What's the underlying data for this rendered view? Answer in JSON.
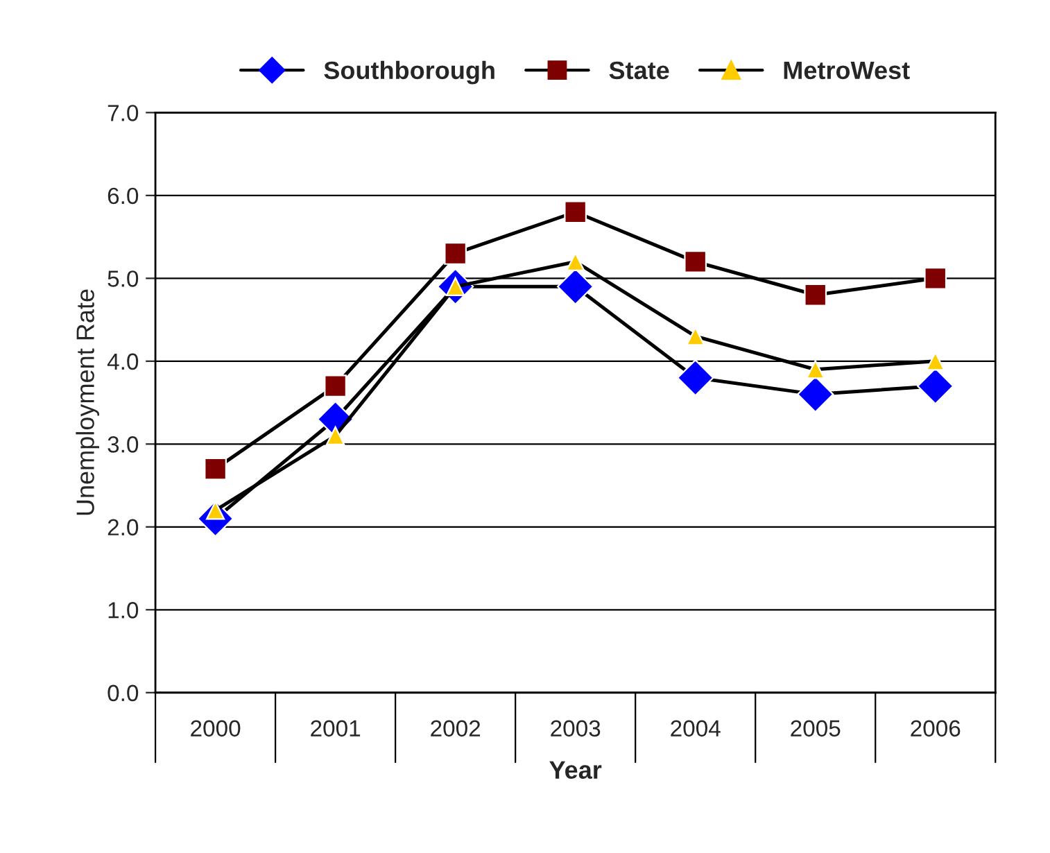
{
  "chart_data": {
    "type": "line",
    "xlabel": "Year",
    "ylabel": "Unemployment Rate",
    "categories": [
      "2000",
      "2001",
      "2002",
      "2003",
      "2004",
      "2005",
      "2006"
    ],
    "series": [
      {
        "name": "Southborough",
        "color": "#0000ff",
        "marker": "diamond",
        "values": [
          2.1,
          3.3,
          4.9,
          4.9,
          3.8,
          3.6,
          3.7
        ]
      },
      {
        "name": "State",
        "color": "#7f0000",
        "marker": "square",
        "values": [
          2.7,
          3.7,
          5.3,
          5.8,
          5.2,
          4.8,
          5.0
        ]
      },
      {
        "name": "MetroWest",
        "color": "#ffcc00",
        "marker": "triangle",
        "values": [
          2.2,
          3.1,
          4.9,
          5.2,
          4.3,
          3.9,
          4.0
        ]
      }
    ],
    "ylim": [
      0,
      7
    ],
    "yticks": [
      {
        "value": 0,
        "label": "0.0"
      },
      {
        "value": 1,
        "label": "1.0"
      },
      {
        "value": 2,
        "label": "2.0"
      },
      {
        "value": 3,
        "label": "3.0"
      },
      {
        "value": 4,
        "label": "4.0"
      },
      {
        "value": 5,
        "label": "5.0"
      },
      {
        "value": 6,
        "label": "6.0"
      },
      {
        "value": 7,
        "label": "7.0"
      }
    ],
    "grid": "y",
    "legend": "top",
    "line_style": "solid"
  }
}
